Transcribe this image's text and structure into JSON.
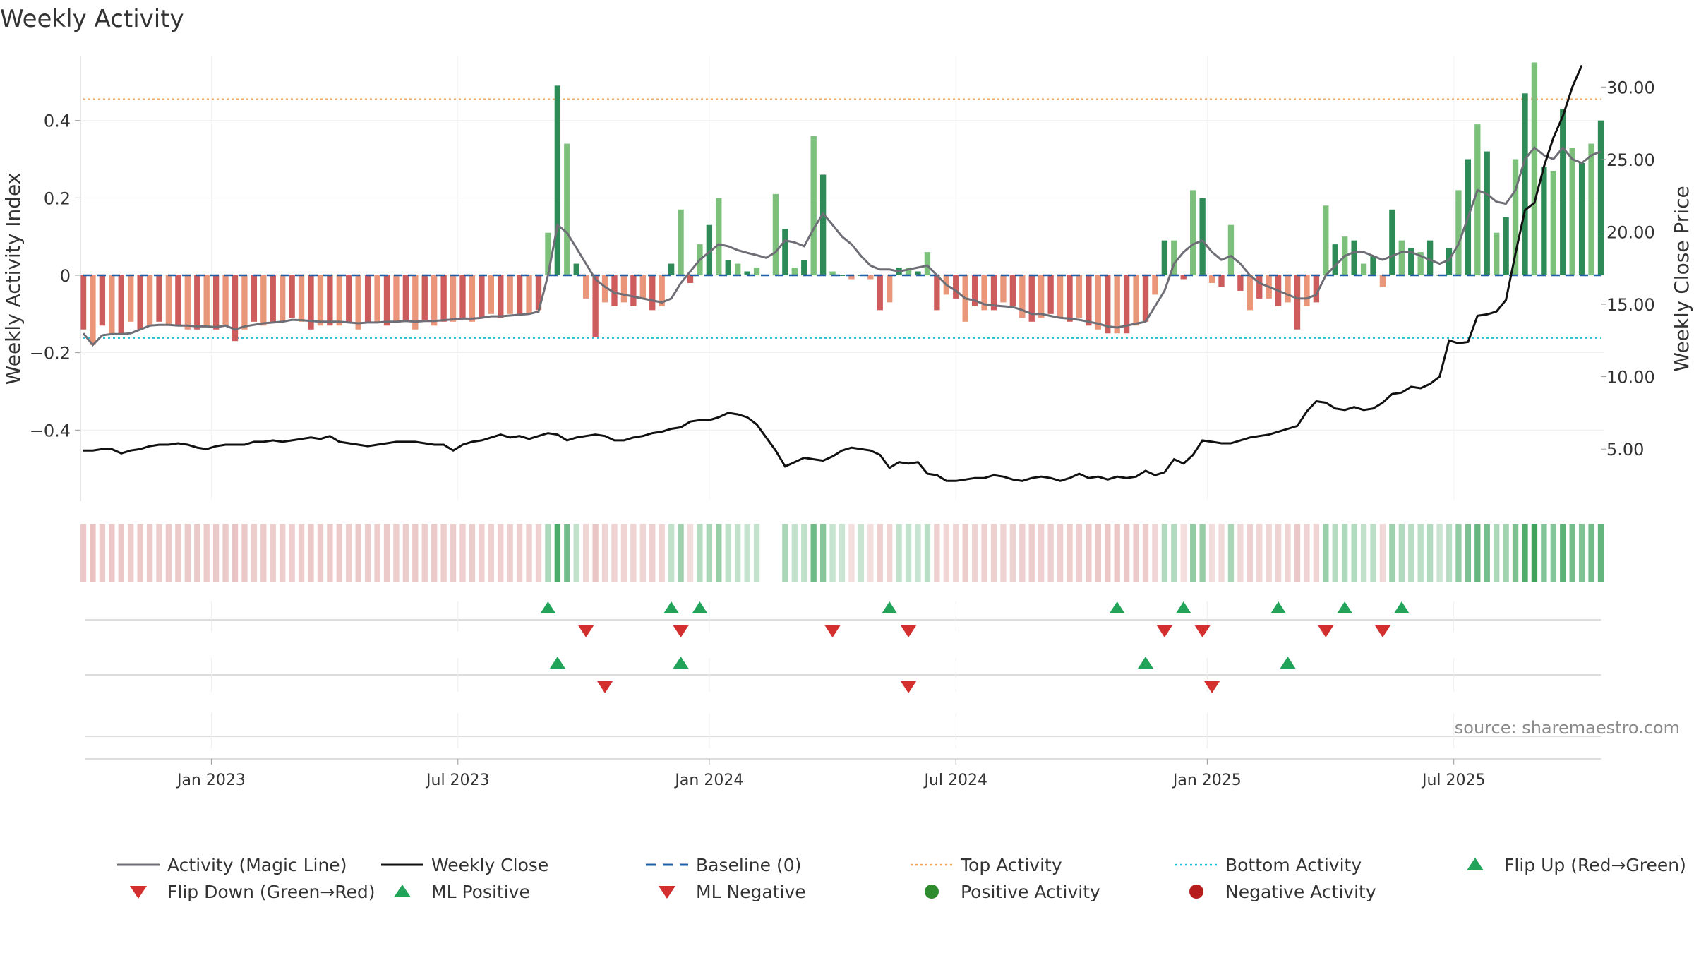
{
  "chart_data": {
    "type": "bar",
    "title": "Weekly Activity",
    "source": "source: sharemaestro.com",
    "xlabel": "",
    "ylabel": "Weekly Activity Index",
    "ylabel_right": "Weekly Close Price",
    "ylim": [
      -0.58,
      0.58
    ],
    "ylim_right": [
      1.5,
      32.5
    ],
    "y_ticks": [
      {
        "value": 0.4,
        "label": "0.4"
      },
      {
        "value": 0.2,
        "label": "0.2"
      },
      {
        "value": 0,
        "label": "0"
      },
      {
        "value": -0.2,
        "label": "−0.2"
      },
      {
        "value": -0.4,
        "label": "−0.4"
      }
    ],
    "y_ticks_right": [
      {
        "value": 30,
        "label": "30.00"
      },
      {
        "value": 25,
        "label": "25.00"
      },
      {
        "value": 20,
        "label": "20.00"
      },
      {
        "value": 15,
        "label": "15.00"
      },
      {
        "value": 10,
        "label": "10.00"
      },
      {
        "value": 5,
        "label": "5.00"
      }
    ],
    "x_ticks": [
      {
        "week": 13.5,
        "label": "Jan 2023"
      },
      {
        "week": 39.5,
        "label": "Jul 2023"
      },
      {
        "week": 66,
        "label": "Jan 2024"
      },
      {
        "week": 92,
        "label": "Jul 2024"
      },
      {
        "week": 118.5,
        "label": "Jan 2025"
      },
      {
        "week": 144.5,
        "label": "Jul 2025"
      }
    ],
    "reference_lines": {
      "top_activity": 0.455,
      "bottom_activity": -0.162,
      "baseline": 0
    },
    "activity": [
      -0.14,
      -0.18,
      -0.13,
      -0.15,
      -0.15,
      -0.12,
      -0.14,
      -0.13,
      -0.12,
      -0.13,
      -0.13,
      -0.14,
      -0.14,
      -0.13,
      -0.14,
      -0.13,
      -0.17,
      -0.14,
      -0.12,
      -0.13,
      -0.12,
      -0.12,
      -0.11,
      -0.12,
      -0.14,
      -0.13,
      -0.13,
      -0.13,
      -0.12,
      -0.14,
      -0.12,
      -0.12,
      -0.13,
      -0.12,
      -0.12,
      -0.14,
      -0.12,
      -0.13,
      -0.12,
      -0.12,
      -0.11,
      -0.12,
      -0.11,
      -0.1,
      -0.11,
      -0.1,
      -0.1,
      -0.1,
      -0.09,
      0.11,
      0.49,
      0.34,
      0.03,
      -0.06,
      -0.16,
      -0.07,
      -0.08,
      -0.07,
      -0.08,
      -0.06,
      -0.09,
      -0.08,
      0.03,
      0.17,
      -0.02,
      0.08,
      0.13,
      0.2,
      0.04,
      0.03,
      0.01,
      0.02,
      0.0,
      0.21,
      0.12,
      0.02,
      0.04,
      0.36,
      0.26,
      0.01,
      0.0,
      -0.01,
      0.0,
      -0.01,
      -0.09,
      -0.07,
      0.02,
      0.02,
      0.01,
      0.06,
      -0.09,
      -0.05,
      -0.06,
      -0.12,
      -0.08,
      -0.09,
      -0.09,
      -0.07,
      -0.08,
      -0.11,
      -0.12,
      -0.11,
      -0.1,
      -0.11,
      -0.12,
      -0.11,
      -0.13,
      -0.14,
      -0.15,
      -0.15,
      -0.15,
      -0.13,
      -0.12,
      -0.05,
      0.09,
      0.09,
      -0.01,
      0.22,
      0.2,
      -0.02,
      -0.03,
      0.13,
      -0.04,
      -0.09,
      -0.06,
      -0.06,
      -0.08,
      -0.07,
      -0.14,
      -0.08,
      -0.07,
      0.18,
      0.08,
      0.1,
      0.09,
      0.03,
      0.05,
      -0.03,
      0.17,
      0.09,
      0.07,
      0.06,
      0.09,
      0.0,
      0.07,
      0.22,
      0.3,
      0.39,
      0.32,
      0.11,
      0.15,
      0.3,
      0.47,
      0.55,
      0.28,
      0.27,
      0.43,
      0.33,
      0.29,
      0.34,
      0.4
    ],
    "magic_line": [
      -0.15,
      -0.18,
      -0.155,
      -0.152,
      -0.152,
      -0.15,
      -0.14,
      -0.13,
      -0.128,
      -0.128,
      -0.13,
      -0.13,
      -0.132,
      -0.132,
      -0.134,
      -0.13,
      -0.14,
      -0.132,
      -0.128,
      -0.124,
      -0.122,
      -0.12,
      -0.115,
      -0.116,
      -0.118,
      -0.12,
      -0.12,
      -0.12,
      -0.122,
      -0.124,
      -0.122,
      -0.122,
      -0.12,
      -0.12,
      -0.118,
      -0.12,
      -0.118,
      -0.118,
      -0.116,
      -0.114,
      -0.112,
      -0.112,
      -0.11,
      -0.106,
      -0.106,
      -0.104,
      -0.102,
      -0.1,
      -0.094,
      0.0,
      0.13,
      0.11,
      0.07,
      0.03,
      -0.01,
      -0.03,
      -0.045,
      -0.05,
      -0.055,
      -0.06,
      -0.065,
      -0.07,
      -0.06,
      -0.02,
      0.01,
      0.04,
      0.06,
      0.08,
      0.075,
      0.065,
      0.058,
      0.052,
      0.045,
      0.06,
      0.09,
      0.085,
      0.075,
      0.12,
      0.16,
      0.13,
      0.1,
      0.08,
      0.05,
      0.025,
      0.015,
      0.015,
      0.01,
      0.015,
      0.02,
      0.025,
      0.0,
      -0.025,
      -0.04,
      -0.06,
      -0.065,
      -0.075,
      -0.078,
      -0.08,
      -0.082,
      -0.09,
      -0.1,
      -0.1,
      -0.105,
      -0.11,
      -0.112,
      -0.115,
      -0.12,
      -0.125,
      -0.132,
      -0.135,
      -0.13,
      -0.125,
      -0.12,
      -0.08,
      -0.04,
      0.03,
      0.06,
      0.08,
      0.09,
      0.06,
      0.04,
      0.05,
      0.03,
      0.0,
      -0.02,
      -0.03,
      -0.04,
      -0.05,
      -0.06,
      -0.06,
      -0.05,
      0.0,
      0.025,
      0.05,
      0.06,
      0.06,
      0.05,
      0.04,
      0.05,
      0.06,
      0.06,
      0.05,
      0.04,
      0.03,
      0.04,
      0.08,
      0.15,
      0.22,
      0.21,
      0.19,
      0.185,
      0.22,
      0.3,
      0.33,
      0.31,
      0.3,
      0.33,
      0.3,
      0.29,
      0.31,
      0.32
    ],
    "weekly_close": [
      4.9,
      4.9,
      5.0,
      5.0,
      4.7,
      4.9,
      5.0,
      5.2,
      5.3,
      5.3,
      5.4,
      5.3,
      5.1,
      5.0,
      5.2,
      5.3,
      5.3,
      5.3,
      5.5,
      5.5,
      5.6,
      5.5,
      5.6,
      5.7,
      5.8,
      5.7,
      5.9,
      5.5,
      5.4,
      5.3,
      5.2,
      5.3,
      5.4,
      5.5,
      5.5,
      5.5,
      5.4,
      5.3,
      5.3,
      4.9,
      5.3,
      5.5,
      5.6,
      5.8,
      6.0,
      5.8,
      5.9,
      5.7,
      5.9,
      6.1,
      6.0,
      5.6,
      5.8,
      5.9,
      6.0,
      5.9,
      5.6,
      5.6,
      5.8,
      5.9,
      6.1,
      6.2,
      6.4,
      6.5,
      6.9,
      7.0,
      7.0,
      7.2,
      7.5,
      7.4,
      7.2,
      6.7,
      5.8,
      4.9,
      3.8,
      4.1,
      4.4,
      4.3,
      4.2,
      4.5,
      4.9,
      5.1,
      5.0,
      4.9,
      4.6,
      3.7,
      4.1,
      4.0,
      4.1,
      3.3,
      3.2,
      2.8,
      2.8,
      2.9,
      3.0,
      3.0,
      3.2,
      3.1,
      2.9,
      2.8,
      3.0,
      3.1,
      3.0,
      2.8,
      3.0,
      3.3,
      3.0,
      3.1,
      2.9,
      3.1,
      3.0,
      3.1,
      3.5,
      3.2,
      3.4,
      4.3,
      4.0,
      4.6,
      5.6,
      5.5,
      5.4,
      5.4,
      5.6,
      5.8,
      5.9,
      6.0,
      6.2,
      6.4,
      6.6,
      7.6,
      8.3,
      8.2,
      7.8,
      7.7,
      7.9,
      7.7,
      7.8,
      8.2,
      8.8,
      8.9,
      9.3,
      9.2,
      9.5,
      10.0,
      12.5,
      12.3,
      12.4,
      14.2,
      14.3,
      14.5,
      15.3,
      18.5,
      21.5,
      22.0,
      24.5,
      26.5,
      28.0,
      30.0,
      31.5
    ],
    "strip_missing": [
      72,
      73
    ],
    "signals_row1": {
      "flip_up": [
        49,
        62,
        65,
        85,
        109,
        116,
        126,
        133,
        139
      ],
      "flip_down": [
        53,
        63,
        79,
        87,
        114,
        118,
        131,
        137
      ]
    },
    "signals_row2": {
      "ml_positive": [
        50,
        63,
        112,
        127
      ],
      "ml_negative": [
        55,
        87,
        119
      ]
    },
    "legend": [
      {
        "label": "Activity (Magic Line)",
        "color": "#6e6e76",
        "kind": "line"
      },
      {
        "label": "Weekly Close",
        "color": "#111111",
        "kind": "line"
      },
      {
        "label": "Baseline (0)",
        "color": "#1f5fa8",
        "kind": "dash"
      },
      {
        "label": "Top Activity",
        "color": "#f2a55c",
        "kind": "dot"
      },
      {
        "label": "Bottom Activity",
        "color": "#23bcd6",
        "kind": "dot"
      },
      {
        "label": "Flip Up (Red→Green)",
        "color": "#21a35a",
        "kind": "tri-up"
      },
      {
        "label": "Flip Down (Green→Red)",
        "color": "#d32f2f",
        "kind": "tri-down"
      },
      {
        "label": "ML Positive",
        "color": "#21a35a",
        "kind": "tri-up"
      },
      {
        "label": "ML Negative",
        "color": "#d32f2f",
        "kind": "tri-down"
      },
      {
        "label": "Positive Activity",
        "color": "#2e8b2e",
        "kind": "circle"
      },
      {
        "label": "Negative Activity",
        "color": "#b71c1c",
        "kind": "circle"
      }
    ],
    "colors": {
      "pos_strong": "#2e8b57",
      "pos_light": "#7cc07c",
      "neg_strong": "#cd5c5c",
      "neg_light": "#e9967a",
      "strip_pos": "#3da35d",
      "strip_neg": "#d68a8a"
    }
  }
}
